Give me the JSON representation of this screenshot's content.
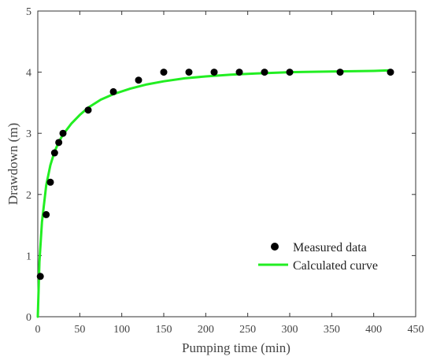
{
  "chart_data": {
    "type": "scatter",
    "xlabel": "Pumping time (min)",
    "ylabel": "Drawdown (m)",
    "xlim": [
      0,
      450
    ],
    "ylim": [
      0,
      5
    ],
    "x_ticks": [
      0,
      50,
      100,
      150,
      200,
      250,
      300,
      350,
      400,
      450
    ],
    "y_ticks": [
      0,
      1,
      2,
      3,
      4,
      5
    ],
    "grid": false,
    "legend": "lower-right",
    "series": [
      {
        "name": "Measured data",
        "kind": "scatter",
        "color": "#000000",
        "x": [
          3,
          10,
          15,
          20,
          25,
          30,
          60,
          90,
          120,
          150,
          180,
          210,
          240,
          270,
          300,
          360,
          420
        ],
        "y": [
          0.66,
          1.67,
          2.2,
          2.68,
          2.85,
          3.0,
          3.38,
          3.68,
          3.87,
          4.0,
          4.0,
          4.0,
          4.0,
          4.0,
          4.0,
          4.0,
          4.0
        ]
      },
      {
        "name": "Calculated curve",
        "kind": "line",
        "color": "#22ee22",
        "x": [
          0,
          2,
          5,
          10,
          15,
          20,
          25,
          30,
          40,
          50,
          60,
          75,
          90,
          110,
          130,
          150,
          175,
          200,
          230,
          260,
          300,
          350,
          400,
          420
        ],
        "y": [
          0,
          0.9,
          1.55,
          2.15,
          2.48,
          2.7,
          2.86,
          2.98,
          3.16,
          3.3,
          3.42,
          3.55,
          3.64,
          3.73,
          3.8,
          3.85,
          3.9,
          3.93,
          3.96,
          3.98,
          4.0,
          4.01,
          4.02,
          4.03
        ]
      }
    ]
  }
}
